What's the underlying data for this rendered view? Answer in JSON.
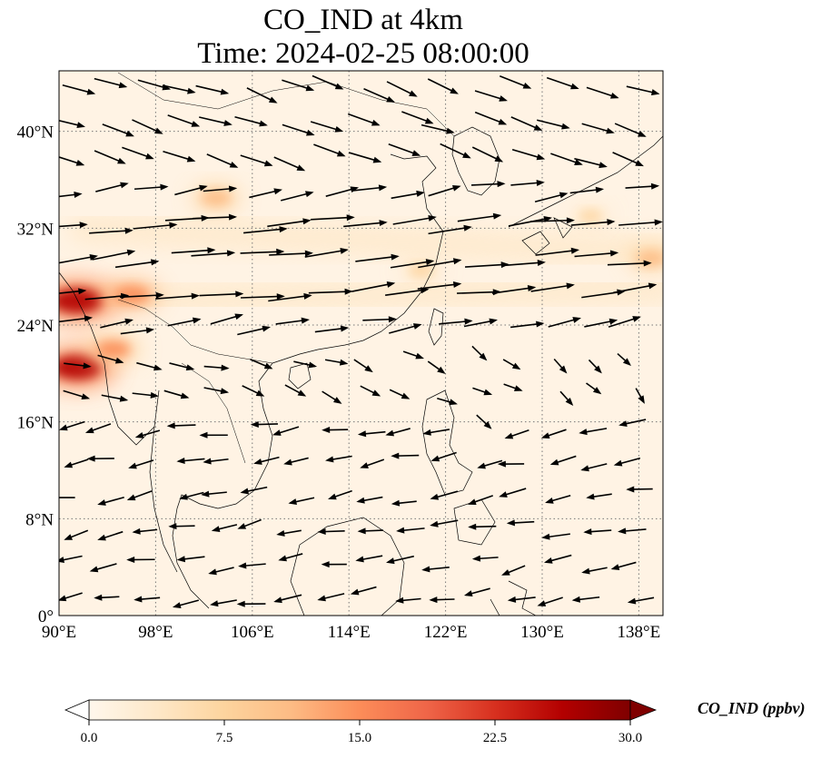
{
  "title": {
    "line1": "CO_IND at 4km",
    "line2": "Time: 2024-02-25 08:00:00"
  },
  "map": {
    "projection": "PlateCarree",
    "lon_range": [
      90,
      140
    ],
    "lat_range": [
      0,
      45
    ],
    "lon_ticks": [
      {
        "value": 90,
        "label": "90°E"
      },
      {
        "value": 98,
        "label": "98°E"
      },
      {
        "value": 106,
        "label": "106°E"
      },
      {
        "value": 114,
        "label": "114°E"
      },
      {
        "value": 122,
        "label": "122°E"
      },
      {
        "value": 130,
        "label": "130°E"
      },
      {
        "value": 138,
        "label": "138°E"
      }
    ],
    "lat_ticks": [
      {
        "value": 0,
        "label": "0°"
      },
      {
        "value": 8,
        "label": "8°N"
      },
      {
        "value": 16,
        "label": "16°N"
      },
      {
        "value": 24,
        "label": "24°N"
      },
      {
        "value": 32,
        "label": "32°N"
      },
      {
        "value": 40,
        "label": "40°N"
      }
    ],
    "gridlines": true,
    "gridline_style": "dotted",
    "field_colormap": "OrRd",
    "wind_vectors": "black arrows"
  },
  "colorbar": {
    "label": "CO_IND (ppbv)",
    "min": 0,
    "max": 30,
    "extend": "both",
    "ticks": [
      {
        "value": 0,
        "label": "0.0"
      },
      {
        "value": 7.5,
        "label": "7.5"
      },
      {
        "value": 15,
        "label": "15.0"
      },
      {
        "value": 22.5,
        "label": "22.5"
      },
      {
        "value": 30,
        "label": "30.0"
      }
    ],
    "colors": [
      "#fff7ec",
      "#fee8c8",
      "#fdd49e",
      "#fdbb84",
      "#fc8d59",
      "#ef6548",
      "#d7301f",
      "#b30000",
      "#7f0000"
    ]
  },
  "chart_data": {
    "type": "heatmap",
    "variable": "CO_IND",
    "units": "ppbv",
    "x_range": [
      90,
      140
    ],
    "y_range": [
      0,
      45
    ],
    "hotspots": [
      {
        "lon": 91.5,
        "lat": 26,
        "value": 28
      },
      {
        "lon": 91.5,
        "lat": 20.5,
        "value": 27
      },
      {
        "lon": 96,
        "lat": 26.5,
        "value": 16
      },
      {
        "lon": 94.5,
        "lat": 22,
        "value": 15
      },
      {
        "lon": 103,
        "lat": 34.5,
        "value": 12
      },
      {
        "lon": 120,
        "lat": 28.5,
        "value": 9
      },
      {
        "lon": 139,
        "lat": 29.5,
        "value": 11
      },
      {
        "lon": 134,
        "lat": 33,
        "value": 7
      }
    ],
    "bands": [
      {
        "lon_from": 92,
        "lat_from": 32,
        "lon_to": 140,
        "lat_to": 30,
        "value": 5
      },
      {
        "lon_from": 90,
        "lat_from": 26,
        "lon_to": 140,
        "lat_to": 27,
        "value": 4
      },
      {
        "lon_from": 93,
        "lat_from": 36,
        "lon_to": 140,
        "lat_to": 36,
        "value": 2.5
      }
    ]
  }
}
